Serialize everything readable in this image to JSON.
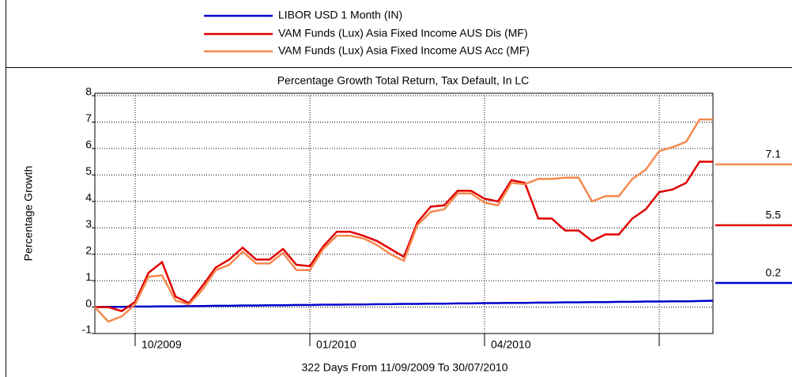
{
  "chart_data": {
    "type": "line",
    "title": "Percentage Growth Total Return, Tax Default, In LC",
    "y_label": "Percentage Growth",
    "x_label": "322 Days From 11/09/2009 To 30/07/2010",
    "categories": [
      null,
      null,
      null,
      "10/2009",
      null,
      null,
      null,
      null,
      null,
      null,
      null,
      null,
      null,
      null,
      null,
      null,
      "01/2010",
      null,
      null,
      null,
      null,
      null,
      null,
      null,
      null,
      null,
      null,
      null,
      null,
      "04/2010",
      null,
      null,
      null,
      null,
      null,
      null,
      null,
      null,
      null,
      null,
      null,
      null,
      null,
      null,
      null,
      null,
      null
    ],
    "ylim": [
      -1,
      8
    ],
    "yticks": [
      -1,
      0,
      1,
      2,
      3,
      4,
      5,
      6,
      7,
      8
    ],
    "grid": true,
    "series": [
      {
        "name": "LIBOR USD 1 Month (IN)",
        "color": "#0000cc",
        "values": [
          0,
          0.01,
          0.01,
          0.02,
          0.02,
          0.03,
          0.03,
          0.04,
          0.04,
          0.05,
          0.05,
          0.06,
          0.06,
          0.07,
          0.07,
          0.08,
          0.08,
          0.09,
          0.09,
          0.1,
          0.1,
          0.11,
          0.11,
          0.12,
          0.12,
          0.13,
          0.13,
          0.14,
          0.14,
          0.15,
          0.15,
          0.16,
          0.16,
          0.17,
          0.17,
          0.18,
          0.18,
          0.19,
          0.19,
          0.2,
          0.2,
          0.21,
          0.21,
          0.22,
          0.22,
          0.23,
          0.24
        ],
        "value_labels": [
          null,
          null,
          null,
          null,
          null,
          null,
          null,
          null,
          null,
          null,
          null,
          null,
          null,
          null,
          null,
          null,
          null,
          null,
          null,
          null,
          null,
          null,
          null,
          null,
          null,
          null,
          null,
          null,
          null,
          null,
          null,
          null,
          null,
          null,
          null,
          null,
          null,
          null,
          null,
          null,
          null,
          null,
          null,
          null,
          null,
          null,
          "0.2"
        ]
      },
      {
        "name": "VAM Funds (Lux) Asia Fixed Income AUS Dis (MF)",
        "color": "#e00000",
        "values": [
          0,
          0,
          -0.15,
          0.2,
          1.3,
          1.7,
          0.4,
          0.15,
          0.8,
          1.5,
          1.8,
          2.25,
          1.8,
          1.8,
          2.2,
          1.6,
          1.55,
          2.3,
          2.85,
          2.85,
          2.7,
          2.5,
          2.2,
          1.9,
          3.2,
          3.8,
          3.85,
          4.4,
          4.4,
          4.1,
          4.0,
          4.8,
          4.7,
          3.35,
          3.35,
          2.9,
          2.9,
          2.5,
          2.75,
          2.75,
          3.35,
          3.7,
          4.35,
          4.45,
          4.7,
          5.5,
          5.5
        ],
        "value_labels": [
          null,
          null,
          null,
          null,
          null,
          null,
          null,
          null,
          null,
          null,
          null,
          null,
          null,
          null,
          null,
          null,
          null,
          null,
          null,
          null,
          null,
          null,
          null,
          null,
          null,
          null,
          null,
          null,
          null,
          null,
          null,
          null,
          null,
          null,
          null,
          null,
          null,
          null,
          null,
          null,
          null,
          null,
          null,
          null,
          null,
          null,
          "5.5"
        ]
      },
      {
        "name": "VAM Funds (Lux) Asia Fixed Income AUS Acc (MF)",
        "color": "#f4894f",
        "values": [
          0,
          -0.55,
          -0.35,
          0.1,
          1.15,
          1.2,
          0.25,
          0.1,
          0.65,
          1.4,
          1.6,
          2.1,
          1.65,
          1.65,
          2.05,
          1.4,
          1.4,
          2.2,
          2.7,
          2.7,
          2.6,
          2.35,
          2.0,
          1.75,
          3.1,
          3.6,
          3.7,
          4.3,
          4.3,
          3.95,
          3.85,
          4.7,
          4.65,
          4.85,
          4.85,
          4.9,
          4.9,
          4.0,
          4.2,
          4.2,
          4.85,
          5.2,
          5.9,
          6.05,
          6.25,
          7.1,
          7.1
        ],
        "value_labels": [
          null,
          null,
          null,
          null,
          null,
          null,
          null,
          null,
          null,
          null,
          null,
          null,
          null,
          null,
          null,
          null,
          null,
          null,
          null,
          null,
          null,
          null,
          null,
          null,
          null,
          null,
          null,
          null,
          null,
          null,
          null,
          null,
          null,
          null,
          null,
          null,
          null,
          null,
          null,
          null,
          null,
          null,
          null,
          null,
          null,
          null,
          "7.1"
        ]
      }
    ]
  }
}
